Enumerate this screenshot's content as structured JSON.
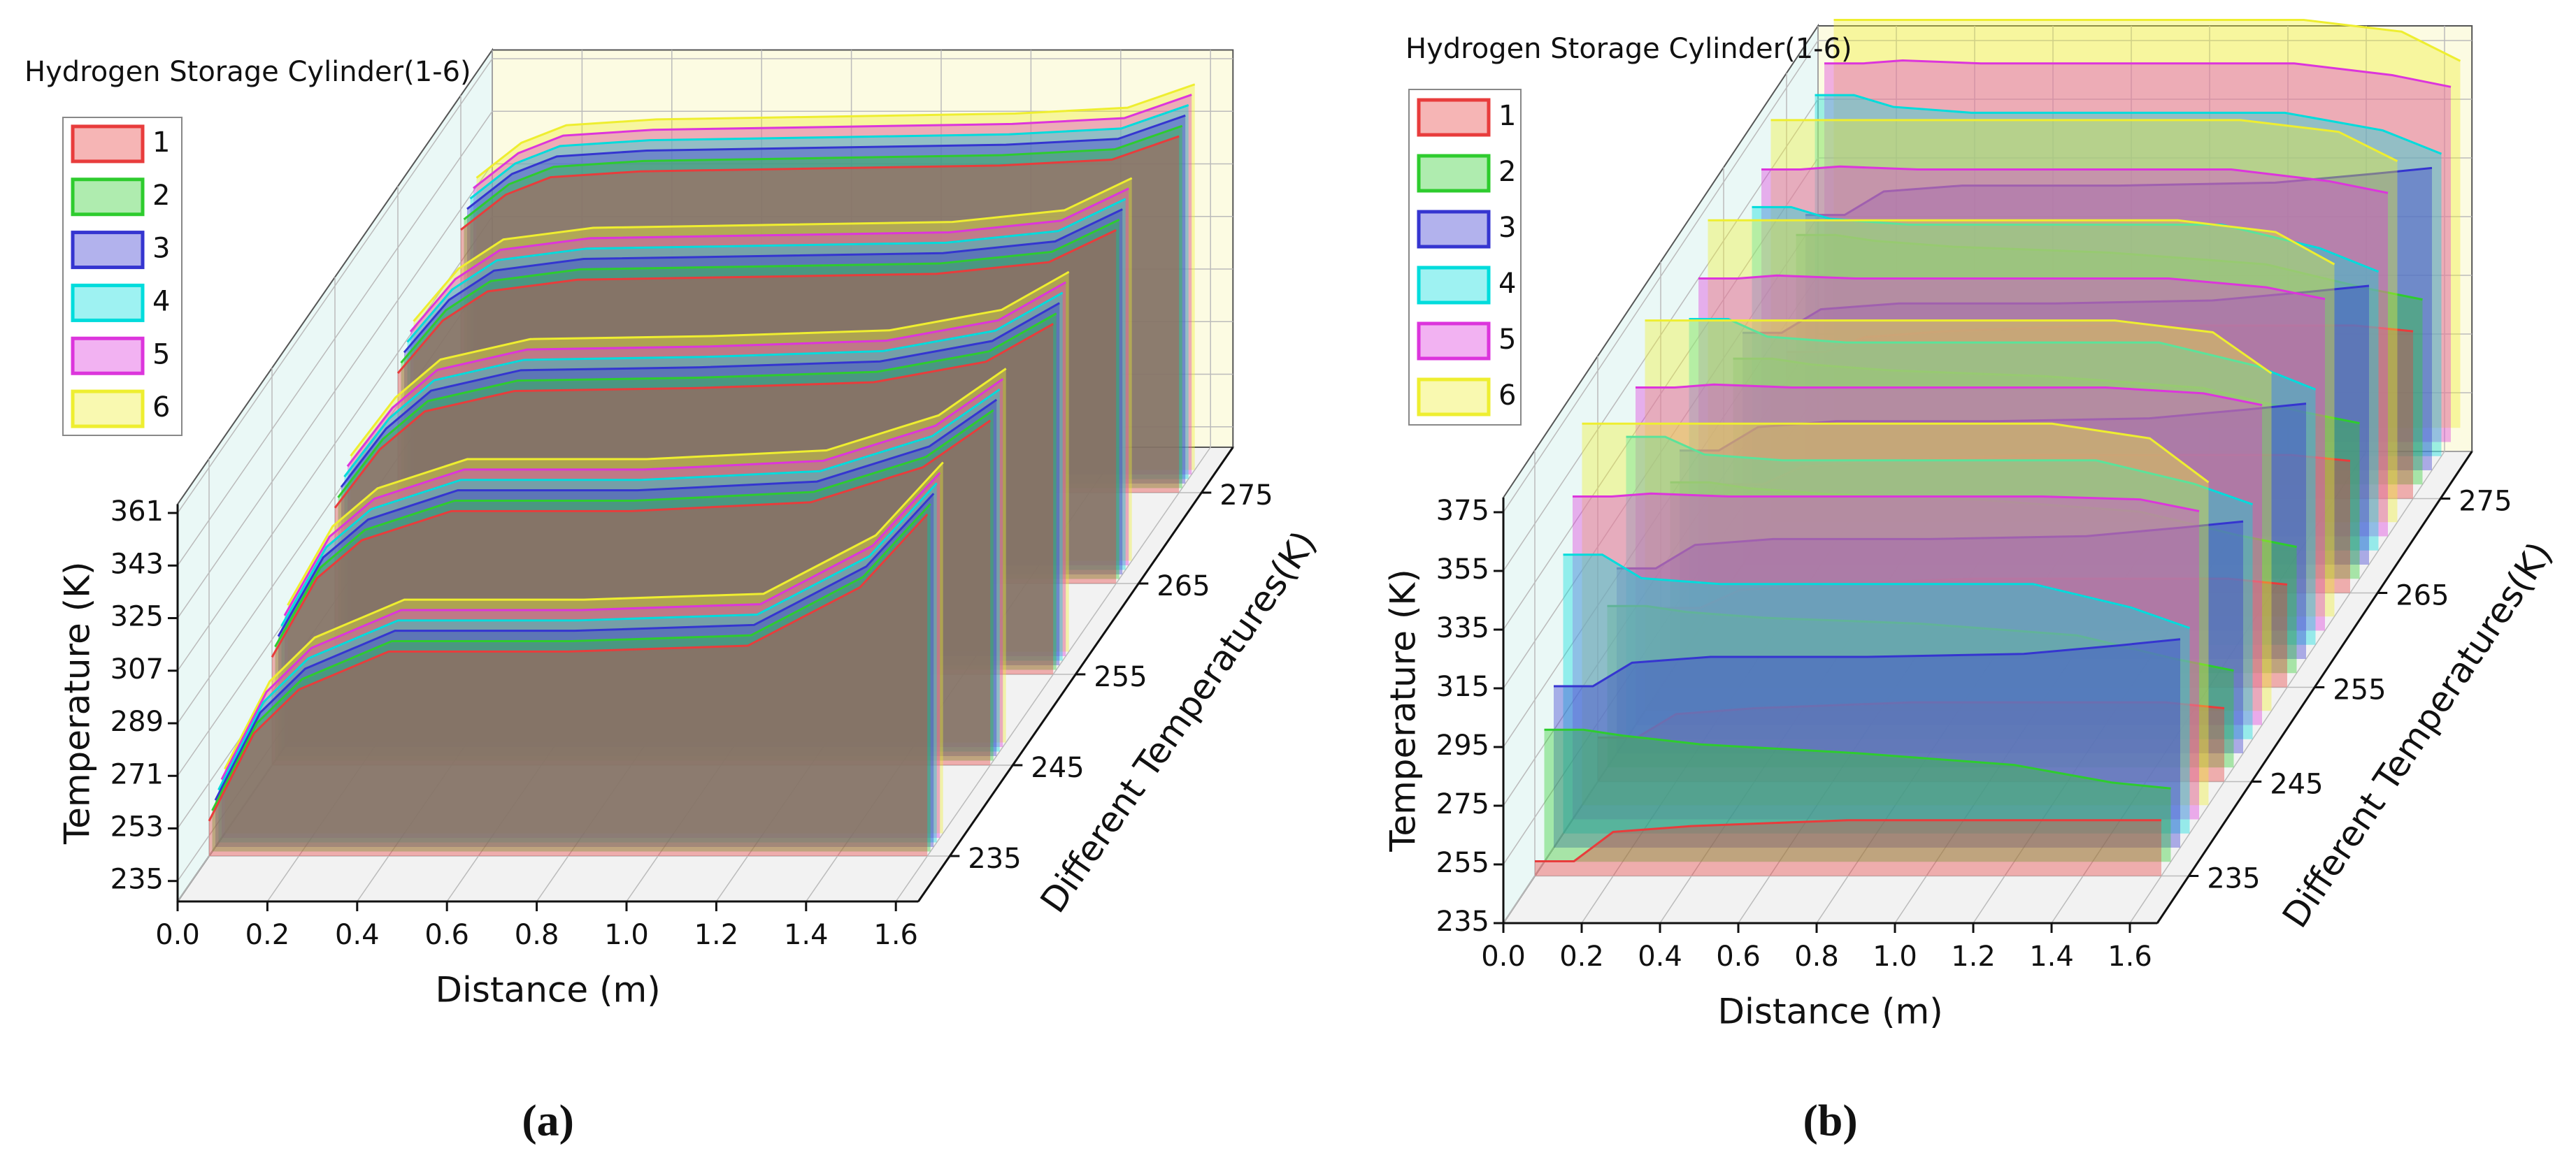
{
  "chart_data": [
    {
      "type": "waterfall3d",
      "caption": "(a)",
      "legend_title": "Hydrogen Storage Cylinder(1-6)",
      "xlabel": "Distance (m)",
      "ylabel": "Temperature (K)",
      "zlabel": "Different Temperatures(K)",
      "x": [
        0,
        0.1,
        0.2,
        0.4,
        0.8,
        1.2,
        1.45,
        1.6
      ],
      "z": [
        235,
        245,
        255,
        265,
        275
      ],
      "xlim": [
        0,
        1.65
      ],
      "xticks": [
        {
          "value": 0,
          "label": "0.0"
        },
        0.2,
        0.4,
        0.6,
        0.8,
        {
          "value": 1,
          "label": "1.0"
        },
        1.2,
        1.4,
        1.6
      ],
      "ylim": [
        228,
        364
      ],
      "yticks": [
        235,
        253,
        271,
        289,
        307,
        325,
        343,
        361
      ],
      "zlim": [
        230,
        280
      ],
      "zticks": [
        235,
        245,
        255,
        265,
        275
      ],
      "grid": true,
      "series": [
        {
          "name": "1",
          "color": "#e83c3c",
          "values": [
            [
              240,
              270,
              285,
              298,
              298,
              300,
              320,
              345
            ],
            [
              265,
              292,
              305,
              315,
              315,
              318,
              330,
              346
            ],
            [
              285,
              305,
              318,
              325,
              326,
              328,
              335,
              348
            ],
            [
              300,
              318,
              328,
              332,
              333,
              334,
              338,
              349
            ],
            [
              318,
              330,
              336,
              338,
              339,
              340,
              342,
              350
            ]
          ]
        },
        {
          "name": "2",
          "color": "#2ecc2e",
          "values": [
            [
              242,
              272,
              287,
              300,
              300,
              302,
              322,
              347
            ],
            [
              267,
              294,
              307,
              317,
              317,
              320,
              332,
              348
            ],
            [
              287,
              307,
              320,
              327,
              328,
              330,
              337,
              350
            ],
            [
              302,
              320,
              330,
              334,
              335,
              336,
              340,
              351
            ],
            [
              320,
              332,
              338,
              340,
              341,
              342,
              344,
              352
            ]
          ]
        },
        {
          "name": "3",
          "color": "#3535d0",
          "values": [
            [
              244,
              274,
              289,
              302,
              302,
              304,
              324,
              349
            ],
            [
              269,
              296,
              309,
              319,
              319,
              322,
              334,
              350
            ],
            [
              289,
              309,
              322,
              329,
              330,
              332,
              339,
              352
            ],
            [
              304,
              322,
              332,
              336,
              337,
              338,
              342,
              353
            ],
            [
              322,
              334,
              340,
              342,
              343,
              344,
              346,
              354
            ]
          ]
        },
        {
          "name": "4",
          "color": "#00dcdc",
          "values": [
            [
              246,
              276,
              291,
              304,
              304,
              306,
              326,
              351
            ],
            [
              271,
              298,
              311,
              321,
              321,
              324,
              336,
              352
            ],
            [
              291,
              311,
              324,
              331,
              332,
              334,
              341,
              354
            ],
            [
              306,
              324,
              334,
              338,
              339,
              340,
              344,
              355
            ],
            [
              324,
              336,
              342,
              344,
              345,
              346,
              348,
              356
            ]
          ]
        },
        {
          "name": "5",
          "color": "#dc35dc",
          "values": [
            [
              248,
              278,
              293,
              306,
              306,
              308,
              328,
              353
            ],
            [
              273,
              300,
              313,
              323,
              323,
              326,
              338,
              354
            ],
            [
              293,
              313,
              326,
              333,
              334,
              336,
              343,
              356
            ],
            [
              308,
              326,
              336,
              340,
              341,
              342,
              346,
              357
            ],
            [
              326,
              338,
              344,
              346,
              347,
              348,
              350,
              358
            ]
          ]
        },
        {
          "name": "6",
          "color": "#eeee30",
          "values": [
            [
              250,
              280,
              295,
              308,
              308,
              310,
              330,
              355
            ],
            [
              275,
              302,
              315,
              325,
              325,
              328,
              340,
              356
            ],
            [
              295,
              315,
              328,
              335,
              336,
              338,
              345,
              358
            ],
            [
              310,
              328,
              338,
              342,
              343,
              344,
              348,
              359
            ],
            [
              328,
              340,
              346,
              348,
              349,
              350,
              352,
              360
            ]
          ]
        }
      ]
    },
    {
      "type": "waterfall3d",
      "caption": "(b)",
      "legend_title": "Hydrogen Storage Cylinder(1-6)",
      "xlabel": "Distance (m)",
      "ylabel": "Temperature (K)",
      "zlabel": "Different Temperatures(K)",
      "x": [
        0,
        0.1,
        0.2,
        0.4,
        0.8,
        1.2,
        1.45,
        1.6
      ],
      "z": [
        235,
        245,
        255,
        265,
        275
      ],
      "xlim": [
        0,
        1.67
      ],
      "xticks": [
        {
          "value": 0,
          "label": "0.0"
        },
        0.2,
        0.4,
        0.6,
        0.8,
        {
          "value": 1,
          "label": "1.0"
        },
        1.2,
        1.4,
        1.6
      ],
      "ylim": [
        235,
        380
      ],
      "yticks": [
        235,
        255,
        275,
        295,
        315,
        335,
        355,
        375
      ],
      "zlim": [
        230,
        280
      ],
      "zticks": [
        235,
        245,
        255,
        265,
        275
      ],
      "grid": true,
      "series": [
        {
          "name": "1",
          "color": "#e83c3c",
          "values": [
            [
              240,
              240,
              250,
              252,
              254,
              254,
              254,
              254
            ],
            [
              250,
              250,
              258,
              260,
              262,
              262,
              262,
              260
            ],
            [
              262,
              262,
              268,
              270,
              272,
              272,
              272,
              270
            ],
            [
              272,
              272,
              278,
              280,
              282,
              282,
              282,
              280
            ],
            [
              285,
              285,
              290,
              292,
              294,
              294,
              294,
              292
            ]
          ]
        },
        {
          "name": "2",
          "color": "#2ecc2e",
          "values": [
            [
              280,
              280,
              278,
              275,
              272,
              268,
              262,
              260
            ],
            [
              290,
              290,
              288,
              286,
              284,
              280,
              272,
              268
            ],
            [
              300,
              300,
              298,
              296,
              294,
              290,
              282,
              278
            ],
            [
              310,
              310,
              308,
              306,
              304,
              300,
              292,
              288
            ],
            [
              320,
              320,
              318,
              316,
              314,
              310,
              302,
              298
            ]
          ]
        },
        {
          "name": "3",
          "color": "#3535d0",
          "values": [
            [
              290,
              290,
              298,
              300,
              300,
              301,
              304,
              306
            ],
            [
              298,
              298,
              306,
              308,
              308,
              309,
              312,
              314
            ],
            [
              306,
              306,
              314,
              316,
              316,
              317,
              320,
              322
            ],
            [
              314,
              314,
              322,
              324,
              324,
              325,
              328,
              330
            ],
            [
              322,
              322,
              330,
              332,
              332,
              333,
              336,
              338
            ]
          ]
        },
        {
          "name": "4",
          "color": "#00dcdc",
          "values": [
            [
              330,
              330,
              322,
              320,
              320,
              320,
              312,
              305
            ],
            [
              338,
              338,
              332,
              330,
              330,
              330,
              322,
              315
            ],
            [
              346,
              346,
              340,
              338,
              338,
              338,
              330,
              322
            ],
            [
              352,
              352,
              348,
              346,
              346,
              346,
              338,
              330
            ],
            [
              358,
              358,
              354,
              352,
              352,
              352,
              346,
              338
            ]
          ]
        },
        {
          "name": "5",
          "color": "#dc35dc",
          "values": [
            [
              345,
              345,
              346,
              345,
              345,
              345,
              344,
              340
            ],
            [
              350,
              350,
              351,
              350,
              350,
              350,
              348,
              344
            ],
            [
              355,
              355,
              356,
              355,
              355,
              355,
              352,
              348
            ],
            [
              360,
              360,
              361,
              360,
              360,
              360,
              356,
              352
            ],
            [
              364,
              364,
              365,
              364,
              364,
              364,
              360,
              356
            ]
          ]
        },
        {
          "name": "6",
          "color": "#eeee30",
          "values": [
            [
              365,
              365,
              365,
              365,
              365,
              365,
              360,
              345
            ],
            [
              368,
              368,
              368,
              368,
              368,
              368,
              364,
              350
            ],
            [
              370,
              370,
              370,
              370,
              370,
              370,
              366,
              355
            ],
            [
              372,
              372,
              372,
              372,
              372,
              372,
              368,
              358
            ],
            [
              374,
              374,
              374,
              374,
              374,
              374,
              370,
              360
            ]
          ]
        }
      ]
    }
  ]
}
